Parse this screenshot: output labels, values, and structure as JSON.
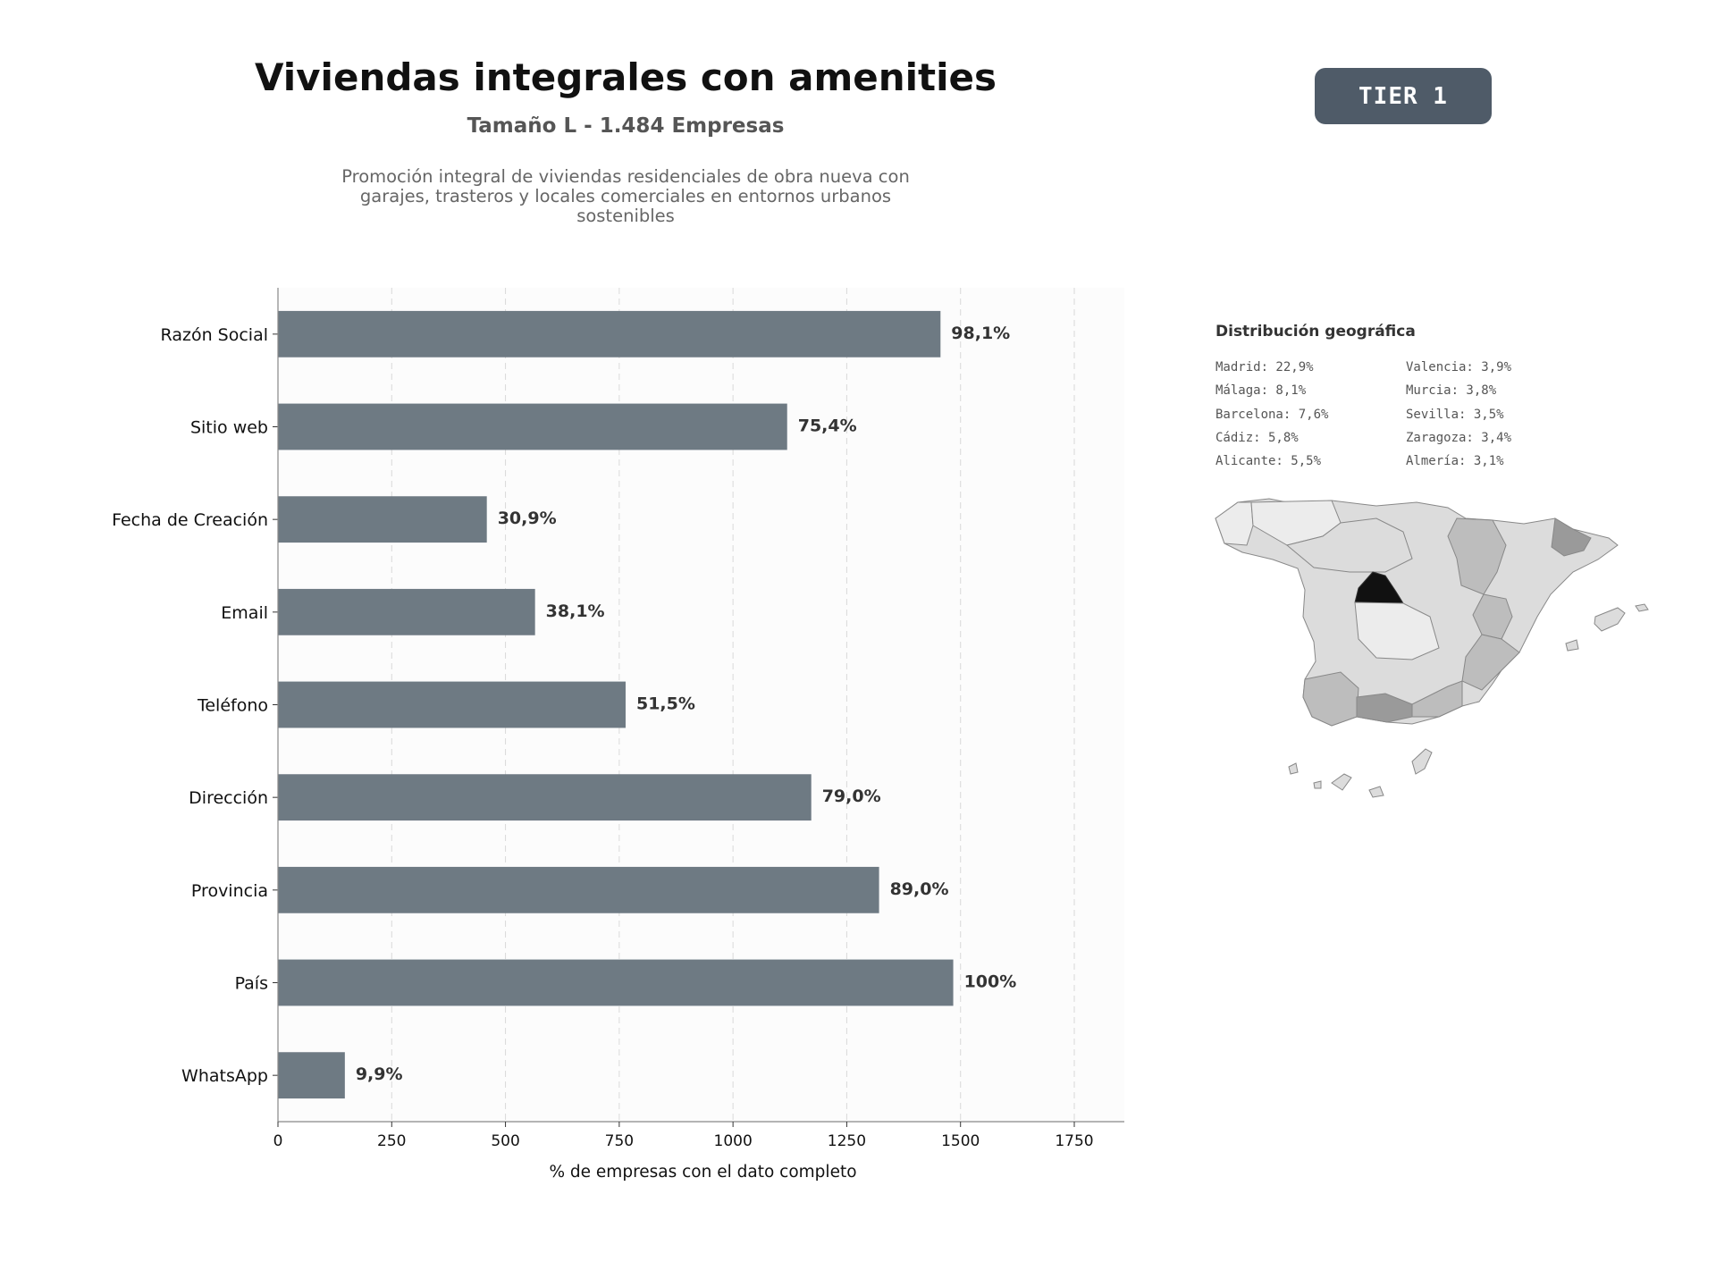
{
  "header": {
    "title": "Viviendas integrales con amenities",
    "subtitle": "Tamaño L - 1.484 Empresas",
    "description_lines": [
      "Promoción integral de viviendas residenciales de obra nueva con",
      "garajes, trasteros y locales comerciales en entornos urbanos",
      "sostenibles"
    ],
    "badge": "TIER 1"
  },
  "chart_data": {
    "type": "bar",
    "orientation": "horizontal",
    "categories": [
      "Razón Social",
      "Sitio web",
      "Fecha de Creación",
      "Email",
      "Teléfono",
      "Dirección",
      "Provincia",
      "País",
      "WhatsApp"
    ],
    "values": [
      1456,
      1119,
      459,
      565,
      764,
      1172,
      1321,
      1484,
      147
    ],
    "value_labels": [
      "98,1%",
      "75,4%",
      "30,9%",
      "38,1%",
      "51,5%",
      "79,0%",
      "89,0%",
      "100%",
      "9,9%"
    ],
    "xlabel": "% de empresas con el dato completo",
    "xlim": [
      0,
      1860
    ],
    "xticks": [
      0,
      250,
      500,
      750,
      1000,
      1250,
      1500,
      1750
    ],
    "grid": "x-dashed",
    "bar_color": "#6e7a83",
    "label_color": "#333333"
  },
  "geo": {
    "title": "Distribución geográfica",
    "items": [
      "Madrid: 22,9%",
      "Valencia: 3,9%",
      "Málaga: 8,1%",
      "Murcia: 3,8%",
      "Barcelona: 7,6%",
      "Sevilla: 3,5%",
      "Cádiz: 5,8%",
      "Zaragoza: 3,4%",
      "Alicante: 5,5%",
      "Almería: 3,1%"
    ],
    "map_colors": {
      "madrid": "#111111",
      "high": "#9a9a9a",
      "mid": "#bdbdbd",
      "low": "#dcdcdc",
      "lowest": "#ececec",
      "border": "#888888"
    }
  }
}
